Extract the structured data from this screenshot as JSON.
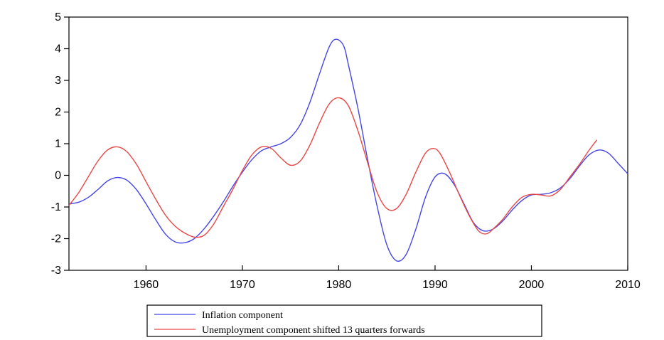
{
  "chart_data": {
    "type": "line",
    "title": "",
    "xlabel": "",
    "ylabel": "",
    "xlim": [
      1952,
      2010
    ],
    "ylim": [
      -3,
      5
    ],
    "x_ticks": [
      1960,
      1970,
      1980,
      1990,
      2000,
      2010
    ],
    "y_ticks": [
      -3,
      -2,
      -1,
      0,
      1,
      2,
      3,
      4,
      5
    ],
    "grid": false,
    "legend_position": "bottom-center",
    "series": [
      {
        "name": "Inflation component",
        "color": "#4646e6",
        "points": [
          [
            1952,
            -0.9
          ],
          [
            1953,
            -0.85
          ],
          [
            1954,
            -0.7
          ],
          [
            1955,
            -0.45
          ],
          [
            1956,
            -0.18
          ],
          [
            1957,
            -0.07
          ],
          [
            1958,
            -0.15
          ],
          [
            1959,
            -0.45
          ],
          [
            1960,
            -0.9
          ],
          [
            1961,
            -1.4
          ],
          [
            1962,
            -1.85
          ],
          [
            1963,
            -2.1
          ],
          [
            1964,
            -2.13
          ],
          [
            1965,
            -2.0
          ],
          [
            1966,
            -1.7
          ],
          [
            1967,
            -1.3
          ],
          [
            1968,
            -0.85
          ],
          [
            1969,
            -0.35
          ],
          [
            1970,
            0.1
          ],
          [
            1971,
            0.5
          ],
          [
            1972,
            0.78
          ],
          [
            1973,
            0.9
          ],
          [
            1974,
            1.0
          ],
          [
            1975,
            1.2
          ],
          [
            1976,
            1.6
          ],
          [
            1977,
            2.3
          ],
          [
            1978,
            3.2
          ],
          [
            1979,
            4.05
          ],
          [
            1979.7,
            4.3
          ],
          [
            1980.5,
            4.1
          ],
          [
            1981,
            3.5
          ],
          [
            1982,
            2.1
          ],
          [
            1983,
            0.5
          ],
          [
            1984,
            -1.0
          ],
          [
            1985,
            -2.2
          ],
          [
            1986,
            -2.7
          ],
          [
            1987,
            -2.5
          ],
          [
            1988,
            -1.7
          ],
          [
            1989,
            -0.7
          ],
          [
            1990,
            -0.05
          ],
          [
            1991,
            0.05
          ],
          [
            1992,
            -0.3
          ],
          [
            1993,
            -0.9
          ],
          [
            1994,
            -1.5
          ],
          [
            1995,
            -1.75
          ],
          [
            1996,
            -1.7
          ],
          [
            1997,
            -1.45
          ],
          [
            1998,
            -1.1
          ],
          [
            1999,
            -0.8
          ],
          [
            2000,
            -0.62
          ],
          [
            2001,
            -0.6
          ],
          [
            2002,
            -0.55
          ],
          [
            2003,
            -0.4
          ],
          [
            2004,
            -0.1
          ],
          [
            2005,
            0.3
          ],
          [
            2006,
            0.65
          ],
          [
            2007,
            0.8
          ],
          [
            2008,
            0.7
          ],
          [
            2009,
            0.38
          ],
          [
            2010,
            0.05
          ]
        ]
      },
      {
        "name": "Unemployment component shifted 13 quarters forwards",
        "color": "#e84848",
        "points": [
          [
            1952,
            -0.95
          ],
          [
            1953,
            -0.55
          ],
          [
            1954,
            -0.05
          ],
          [
            1955,
            0.45
          ],
          [
            1956,
            0.8
          ],
          [
            1957,
            0.9
          ],
          [
            1958,
            0.75
          ],
          [
            1959,
            0.35
          ],
          [
            1960,
            -0.2
          ],
          [
            1961,
            -0.75
          ],
          [
            1962,
            -1.25
          ],
          [
            1963,
            -1.6
          ],
          [
            1964,
            -1.82
          ],
          [
            1965,
            -1.95
          ],
          [
            1966,
            -1.9
          ],
          [
            1967,
            -1.55
          ],
          [
            1968,
            -1.0
          ],
          [
            1969,
            -0.45
          ],
          [
            1970,
            0.15
          ],
          [
            1971,
            0.65
          ],
          [
            1972,
            0.9
          ],
          [
            1973,
            0.85
          ],
          [
            1974,
            0.55
          ],
          [
            1975,
            0.32
          ],
          [
            1976,
            0.45
          ],
          [
            1977,
            0.95
          ],
          [
            1978,
            1.65
          ],
          [
            1979,
            2.25
          ],
          [
            1980,
            2.45
          ],
          [
            1981,
            2.2
          ],
          [
            1982,
            1.4
          ],
          [
            1983,
            0.4
          ],
          [
            1984,
            -0.55
          ],
          [
            1985,
            -1.05
          ],
          [
            1986,
            -1.05
          ],
          [
            1987,
            -0.6
          ],
          [
            1988,
            0.1
          ],
          [
            1989,
            0.7
          ],
          [
            1989.8,
            0.85
          ],
          [
            1990.5,
            0.7
          ],
          [
            1991.5,
            0.1
          ],
          [
            1992.5,
            -0.6
          ],
          [
            1993.5,
            -1.25
          ],
          [
            1994.5,
            -1.75
          ],
          [
            1995.3,
            -1.85
          ],
          [
            1996,
            -1.7
          ],
          [
            1997,
            -1.4
          ],
          [
            1998,
            -1.0
          ],
          [
            1999,
            -0.7
          ],
          [
            2000,
            -0.6
          ],
          [
            2001,
            -0.62
          ],
          [
            2002,
            -0.65
          ],
          [
            2003,
            -0.45
          ],
          [
            2004,
            -0.05
          ],
          [
            2005,
            0.35
          ],
          [
            2006,
            0.8
          ],
          [
            2006.8,
            1.12
          ]
        ]
      }
    ]
  }
}
